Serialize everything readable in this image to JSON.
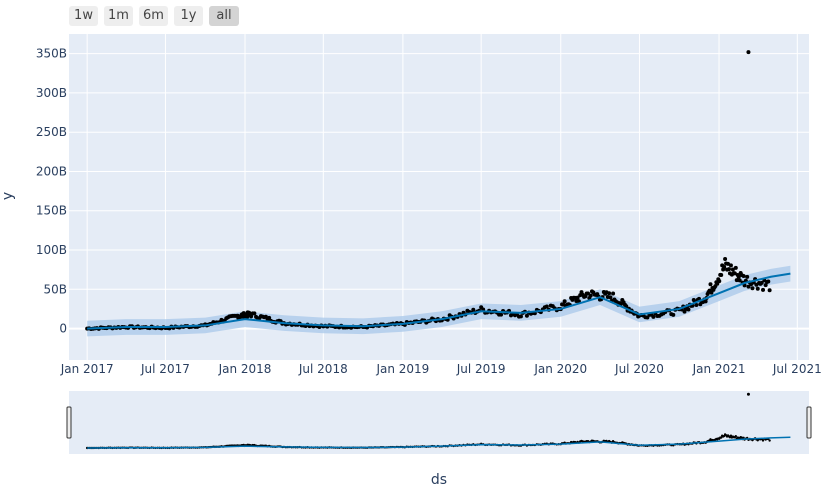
{
  "range_buttons": [
    {
      "label": "1w",
      "active": false
    },
    {
      "label": "1m",
      "active": false
    },
    {
      "label": "6m",
      "active": false
    },
    {
      "label": "1y",
      "active": false
    },
    {
      "label": "all",
      "active": true
    }
  ],
  "colors": {
    "plot_bg": "#e5ecf6",
    "grid": "#ffffff",
    "forecast_line": "#0072b2",
    "uncertainty_band": "#a8c8ea",
    "points": "#000000",
    "slider_bg": "#e5ecf6"
  },
  "chart_data": {
    "type": "scatter",
    "xlabel": "ds",
    "ylabel": "y",
    "x_ticks": [
      "Jan 2017",
      "Jul 2017",
      "Jan 2018",
      "Jul 2018",
      "Jan 2019",
      "Jul 2019",
      "Jan 2020",
      "Jul 2020",
      "Jan 2021",
      "Jul 2021"
    ],
    "y_ticks": [
      "0",
      "50B",
      "100B",
      "150B",
      "200B",
      "250B",
      "300B",
      "350B"
    ],
    "y_tick_values": [
      0,
      50,
      100,
      150,
      200,
      250,
      300,
      350
    ],
    "y_unit": "B",
    "xlim": [
      "2016-11-20",
      "2021-07-28"
    ],
    "ylim": [
      -40,
      375
    ],
    "grid": true,
    "range_slider": true,
    "forecast": {
      "name": "yhat",
      "x": [
        "2017-01-01",
        "2017-04-01",
        "2017-07-01",
        "2017-10-01",
        "2018-01-01",
        "2018-04-01",
        "2018-07-01",
        "2018-10-01",
        "2019-01-01",
        "2019-04-01",
        "2019-07-01",
        "2019-10-01",
        "2020-01-01",
        "2020-04-01",
        "2020-07-01",
        "2020-10-01",
        "2021-01-01",
        "2021-03-01",
        "2021-05-01",
        "2021-06-15"
      ],
      "yhat": [
        0,
        2,
        2,
        4,
        12,
        7,
        4,
        3,
        6,
        12,
        22,
        20,
        25,
        40,
        18,
        25,
        45,
        58,
        66,
        70
      ],
      "band_width": 10
    },
    "observed": {
      "name": "y",
      "outlier": {
        "x": "2021-03-10",
        "y": 352
      },
      "segments": [
        {
          "x": "2017-01-01",
          "y": 0
        },
        {
          "x": "2017-04-01",
          "y": 2
        },
        {
          "x": "2017-07-01",
          "y": 1
        },
        {
          "x": "2017-10-01",
          "y": 4
        },
        {
          "x": "2017-12-15",
          "y": 16
        },
        {
          "x": "2018-01-15",
          "y": 18
        },
        {
          "x": "2018-04-01",
          "y": 7
        },
        {
          "x": "2018-07-01",
          "y": 3
        },
        {
          "x": "2018-10-01",
          "y": 2
        },
        {
          "x": "2019-01-01",
          "y": 6
        },
        {
          "x": "2019-04-01",
          "y": 12
        },
        {
          "x": "2019-07-01",
          "y": 24
        },
        {
          "x": "2019-10-01",
          "y": 18
        },
        {
          "x": "2020-01-01",
          "y": 28
        },
        {
          "x": "2020-03-01",
          "y": 44
        },
        {
          "x": "2020-05-01",
          "y": 40
        },
        {
          "x": "2020-07-01",
          "y": 16
        },
        {
          "x": "2020-10-01",
          "y": 22
        },
        {
          "x": "2020-12-01",
          "y": 40
        },
        {
          "x": "2021-01-15",
          "y": 80
        },
        {
          "x": "2021-03-01",
          "y": 62
        },
        {
          "x": "2021-05-01",
          "y": 55
        }
      ]
    }
  }
}
